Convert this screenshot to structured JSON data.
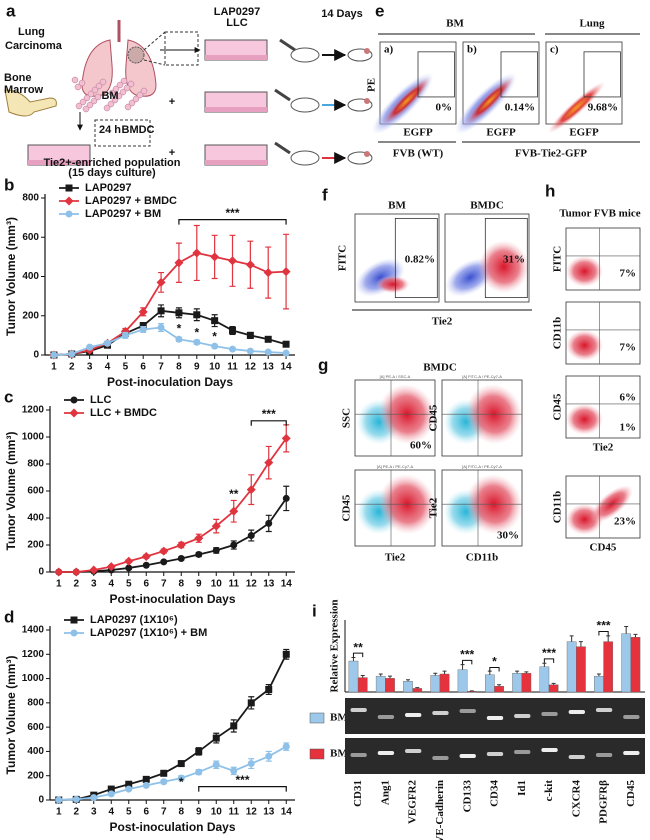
{
  "a": {
    "label": "a",
    "lung": "Lung",
    "carcinoma": "Carcinoma",
    "cell": "LAP0297",
    "cell2": "LLC",
    "days": "14 Days",
    "bone": "Bone",
    "marrow": "Marrow",
    "bm": "BM",
    "plus": "+",
    "hours": "24 h",
    "bmdc": "BMDC",
    "pop": "Tie2+-enriched population",
    "culture": "(15 days culture)"
  },
  "e": {
    "label": "e",
    "groups": [
      "BM",
      "Lung"
    ],
    "y_axis": "PE",
    "x_axis": "EGFP",
    "plots": [
      {
        "tag": "a)",
        "pct": "0%"
      },
      {
        "tag": "b)",
        "pct": "0.14%"
      },
      {
        "tag": "c)",
        "pct": "9.68%"
      }
    ],
    "strains": [
      "FVB (WT)",
      "FVB-Tie2-GFP"
    ]
  },
  "f": {
    "label": "f",
    "y_axis": "FITC",
    "x_axis": "Tie2",
    "plots": [
      {
        "title": "BM",
        "pct": "0.82%"
      },
      {
        "title": "BMDC",
        "pct": "31%"
      }
    ]
  },
  "g": {
    "label": "g",
    "title": "BMDC",
    "plots": [
      {
        "header": "[A] PE-A / SSC-A",
        "y": "SSC",
        "pct": "60%"
      },
      {
        "header": "[A] FITC-A / PE-Cy7-A",
        "y": "CD45"
      },
      {
        "header": "[A] PE-A / PE-Cy7-A",
        "y": "CD45",
        "x": "Tie2"
      },
      {
        "header": "[A] FITC-A / PE-Cy7-A",
        "y": "Tie2",
        "x": "CD11b",
        "pct": "30%"
      }
    ]
  },
  "h": {
    "label": "h",
    "title": "Tumor FVB mice",
    "plots": [
      {
        "y": "FITC",
        "pct": [
          "7%"
        ]
      },
      {
        "y": "CD11b",
        "pct": [
          "7%"
        ]
      },
      {
        "y": "CD45",
        "x": "Tie2",
        "pct": [
          "6%",
          "1%"
        ]
      },
      {
        "y": "CD11b",
        "x": "CD45",
        "pct": [
          "23%"
        ]
      }
    ]
  },
  "chart_data": [
    {
      "type": "line",
      "label": "b",
      "x": [
        1,
        2,
        3,
        4,
        5,
        6,
        7,
        8,
        9,
        10,
        11,
        12,
        13,
        14
      ],
      "xlim": [
        0.5,
        14.5
      ],
      "xticks": [
        1,
        2,
        3,
        4,
        5,
        6,
        7,
        8,
        9,
        10,
        11,
        12,
        13,
        14
      ],
      "ylim": [
        0,
        800
      ],
      "yticks": [
        0,
        200,
        400,
        600,
        800
      ],
      "x_label": "Post-inoculation Days",
      "y_label": "Tumor Volume (mm³)",
      "series": [
        {
          "name": "LAP0297",
          "color": "#1a1a1a",
          "marker": "square",
          "values": [
            0,
            5,
            20,
            50,
            110,
            150,
            225,
            215,
            205,
            175,
            125,
            100,
            80,
            55
          ],
          "errors": [
            0,
            2,
            5,
            8,
            15,
            15,
            30,
            25,
            30,
            30,
            20,
            15,
            12,
            10
          ]
        },
        {
          "name": "LAP0297 + BMDC",
          "color": "#e0343f",
          "marker": "diamond",
          "values": [
            0,
            5,
            25,
            60,
            120,
            220,
            370,
            470,
            520,
            500,
            480,
            460,
            420,
            425
          ],
          "errors": [
            0,
            3,
            8,
            10,
            15,
            20,
            50,
            100,
            140,
            110,
            130,
            120,
            130,
            190
          ]
        },
        {
          "name": "LAP0297 + BM",
          "color": "#8fc1e8",
          "marker": "circle",
          "values": [
            0,
            5,
            40,
            60,
            100,
            130,
            140,
            80,
            65,
            45,
            30,
            20,
            15,
            10
          ],
          "errors": [
            0,
            3,
            8,
            10,
            15,
            15,
            20,
            10,
            10,
            8,
            5,
            5,
            5,
            3
          ]
        }
      ],
      "annotations": [
        {
          "text": "***",
          "from": 8,
          "to": 14,
          "y": 690
        },
        {
          "text": "*",
          "from": 8,
          "y": 130
        },
        {
          "text": "*",
          "from": 9,
          "y": 110
        },
        {
          "text": "*",
          "from": 10,
          "y": 90
        }
      ]
    },
    {
      "type": "line",
      "label": "c",
      "x": [
        1,
        2,
        3,
        4,
        5,
        6,
        7,
        8,
        9,
        10,
        11,
        12,
        13,
        14
      ],
      "xlim": [
        0.5,
        14.5
      ],
      "xticks": [
        1,
        2,
        3,
        4,
        5,
        6,
        7,
        8,
        9,
        10,
        11,
        12,
        13,
        14
      ],
      "ylim": [
        0,
        1200
      ],
      "yticks": [
        0,
        200,
        400,
        600,
        800,
        1000,
        1200
      ],
      "x_label": "Post-inoculation Days",
      "y_label": "Tumor Volume (mm³)",
      "series": [
        {
          "name": "LLC",
          "color": "#1a1a1a",
          "marker": "circle",
          "values": [
            0,
            0,
            5,
            15,
            30,
            50,
            75,
            100,
            130,
            160,
            200,
            270,
            360,
            545
          ],
          "errors": [
            0,
            0,
            2,
            3,
            5,
            5,
            8,
            10,
            15,
            20,
            30,
            40,
            60,
            90
          ]
        },
        {
          "name": "LLC + BMDC",
          "color": "#e0343f",
          "marker": "diamond",
          "values": [
            0,
            0,
            15,
            40,
            80,
            115,
            155,
            200,
            250,
            340,
            450,
            610,
            810,
            990
          ],
          "errors": [
            0,
            0,
            5,
            8,
            10,
            12,
            15,
            20,
            30,
            50,
            80,
            110,
            120,
            100
          ]
        }
      ],
      "annotations": [
        {
          "text": "***",
          "from": 12,
          "to": 14,
          "y": 1120
        },
        {
          "text": "**",
          "from": 11,
          "y": 570
        }
      ]
    },
    {
      "type": "line",
      "label": "d",
      "x": [
        1,
        2,
        3,
        4,
        5,
        6,
        7,
        8,
        9,
        10,
        11,
        12,
        13,
        14
      ],
      "xlim": [
        0.5,
        14.5
      ],
      "xticks": [
        1,
        2,
        3,
        4,
        5,
        6,
        7,
        8,
        9,
        10,
        11,
        12,
        13,
        14
      ],
      "ylim": [
        0,
        1400
      ],
      "yticks": [
        0,
        200,
        400,
        600,
        800,
        1000,
        1200,
        1400
      ],
      "x_label": "Post-inoculation Days",
      "y_label": "Tumor Volume (mm³)",
      "series": [
        {
          "name": "LAP0297 (1X10⁶)",
          "color": "#1a1a1a",
          "marker": "square",
          "values": [
            0,
            5,
            40,
            90,
            130,
            170,
            220,
            300,
            400,
            510,
            610,
            800,
            910,
            1200
          ],
          "errors": [
            0,
            2,
            5,
            10,
            10,
            15,
            15,
            20,
            30,
            40,
            50,
            50,
            40,
            40
          ]
        },
        {
          "name": "LAP0297 (1X10⁶) + BM",
          "color": "#8fc1e8",
          "marker": "circle",
          "values": [
            0,
            5,
            20,
            50,
            90,
            120,
            150,
            180,
            230,
            290,
            240,
            300,
            360,
            440
          ],
          "errors": [
            0,
            2,
            5,
            10,
            10,
            10,
            15,
            20,
            20,
            30,
            30,
            40,
            40,
            30
          ]
        }
      ],
      "annotations": [
        {
          "text": "***",
          "from": 9,
          "to": 14,
          "y": 110
        },
        {
          "text": "*",
          "from": 8,
          "y": 140
        }
      ]
    },
    {
      "type": "bar",
      "label": "i",
      "y_label": "Relative Expression",
      "ylim": [
        0,
        10
      ],
      "categories": [
        "CD31",
        "Ang1",
        "VEGFR2",
        "VE-Cadherin",
        "CD133",
        "CD34",
        "Id1",
        "c-kit",
        "CXCR4",
        "PDGFRβ",
        "CD45"
      ],
      "series": [
        {
          "name": "BM",
          "color": "#9dc8ea",
          "values": [
            4.3,
            2.2,
            1.5,
            2.3,
            3.1,
            2.4,
            2.6,
            3.5,
            7.0,
            2.2,
            8.1
          ],
          "errors": [
            0.5,
            0.3,
            0.2,
            0.3,
            0.7,
            0.5,
            0.3,
            0.5,
            0.8,
            0.3,
            1.0
          ]
        },
        {
          "name": "BMDC",
          "color": "#e5323c",
          "values": [
            2.0,
            1.9,
            0.5,
            2.5,
            0.1,
            0.8,
            2.6,
            1.0,
            6.3,
            7.0,
            7.6
          ],
          "errors": [
            0.3,
            0.3,
            0.1,
            0.4,
            0.05,
            0.2,
            0.2,
            0.2,
            0.7,
            0.8,
            0.4
          ]
        }
      ],
      "annotations": [
        {
          "text": "**",
          "category": 0,
          "y": 5.4
        },
        {
          "text": "***",
          "category": 4,
          "y": 4.4
        },
        {
          "text": "*",
          "category": 5,
          "y": 3.4
        },
        {
          "text": "***",
          "category": 7,
          "y": 4.6
        },
        {
          "text": "***",
          "category": 9,
          "y": 8.4
        }
      ]
    }
  ]
}
